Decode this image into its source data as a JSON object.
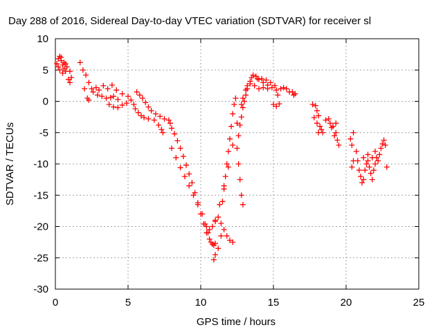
{
  "chart_data": {
    "type": "scatter",
    "title": "Day 288 of 2016, Sidereal Day-to-day VTEC variation (SDTVAR) for receiver sl",
    "xlabel": "GPS time / hours",
    "ylabel": "SDTVAR / TECUs",
    "xlim": [
      0,
      25
    ],
    "ylim": [
      -30,
      10
    ],
    "xticks": [
      0,
      5,
      10,
      15,
      20,
      25
    ],
    "yticks": [
      -30,
      -25,
      -20,
      -15,
      -10,
      -5,
      0,
      5,
      10
    ],
    "grid": true,
    "marker": "+",
    "color": "#ff0000",
    "series": [
      {
        "name": "SDTVAR",
        "points": [
          [
            0.1,
            6.0
          ],
          [
            0.2,
            6.8
          ],
          [
            0.3,
            7.2
          ],
          [
            0.4,
            6.5
          ],
          [
            0.5,
            5.8
          ],
          [
            0.6,
            5.2
          ],
          [
            0.7,
            4.8
          ],
          [
            0.8,
            5.5
          ],
          [
            0.3,
            5.0
          ],
          [
            0.5,
            4.5
          ],
          [
            0.2,
            5.5
          ],
          [
            0.6,
            6.2
          ],
          [
            0.4,
            7.0
          ],
          [
            0.7,
            6.0
          ],
          [
            0.9,
            3.5
          ],
          [
            1.0,
            3.0
          ],
          [
            1.1,
            3.8
          ],
          [
            1.0,
            4.8
          ],
          [
            1.7,
            6.2
          ],
          [
            1.9,
            5.0
          ],
          [
            2.1,
            4.2
          ],
          [
            2.3,
            3.0
          ],
          [
            2.0,
            2.0
          ],
          [
            2.2,
            0.5
          ],
          [
            2.3,
            0.2
          ],
          [
            2.5,
            2.0
          ],
          [
            2.8,
            2.2
          ],
          [
            3.0,
            1.8
          ],
          [
            3.3,
            2.5
          ],
          [
            3.6,
            2.0
          ],
          [
            3.9,
            2.6
          ],
          [
            4.2,
            1.8
          ],
          [
            4.6,
            1.2
          ],
          [
            2.6,
            1.5
          ],
          [
            2.9,
            1.0
          ],
          [
            3.2,
            0.8
          ],
          [
            3.5,
            0.5
          ],
          [
            3.8,
            0.6
          ],
          [
            4.0,
            0.8
          ],
          [
            4.3,
            0.3
          ],
          [
            3.7,
            -0.5
          ],
          [
            4.0,
            -0.9
          ],
          [
            4.3,
            -1.0
          ],
          [
            4.6,
            -0.6
          ],
          [
            4.9,
            -0.3
          ],
          [
            5.0,
            0.8
          ],
          [
            5.2,
            0.2
          ],
          [
            5.4,
            -0.5
          ],
          [
            5.5,
            -1.2
          ],
          [
            5.7,
            -1.8
          ],
          [
            5.9,
            -2.3
          ],
          [
            6.1,
            -2.6
          ],
          [
            6.4,
            -2.8
          ],
          [
            6.8,
            -3.0
          ],
          [
            5.6,
            1.5
          ],
          [
            5.8,
            1.0
          ],
          [
            6.0,
            0.5
          ],
          [
            6.2,
            -0.2
          ],
          [
            6.4,
            -0.9
          ],
          [
            6.6,
            -1.5
          ],
          [
            6.9,
            -2.0
          ],
          [
            7.2,
            -2.4
          ],
          [
            7.5,
            -2.8
          ],
          [
            7.1,
            -3.8
          ],
          [
            7.3,
            -4.5
          ],
          [
            7.4,
            -5.0
          ],
          [
            7.8,
            -3.0
          ],
          [
            7.9,
            -3.5
          ],
          [
            8.0,
            -4.3
          ],
          [
            8.2,
            -5.2
          ],
          [
            8.4,
            -6.3
          ],
          [
            8.6,
            -7.5
          ],
          [
            8.8,
            -8.8
          ],
          [
            9.0,
            -10.2
          ],
          [
            9.2,
            -11.6
          ],
          [
            9.4,
            -13.0
          ],
          [
            9.6,
            -14.6
          ],
          [
            9.8,
            -16.2
          ],
          [
            10.0,
            -18.0
          ],
          [
            10.2,
            -19.6
          ],
          [
            10.4,
            -21.0
          ],
          [
            10.6,
            -22.0
          ],
          [
            10.8,
            -22.8
          ],
          [
            11.0,
            -22.7
          ],
          [
            8.0,
            -7.5
          ],
          [
            8.3,
            -9.0
          ],
          [
            8.6,
            -10.6
          ],
          [
            8.9,
            -12.0
          ],
          [
            9.2,
            -13.5
          ],
          [
            9.5,
            -15.0
          ],
          [
            9.8,
            -16.5
          ],
          [
            10.1,
            -18.0
          ],
          [
            10.3,
            -19.6
          ],
          [
            10.5,
            -21.0
          ],
          [
            10.7,
            -22.5
          ],
          [
            10.9,
            -23.0
          ],
          [
            10.4,
            -20.0
          ],
          [
            10.6,
            -20.5
          ],
          [
            10.8,
            -20.0
          ],
          [
            11.0,
            -19.2
          ],
          [
            11.2,
            -18.5
          ],
          [
            11.4,
            -19.5
          ],
          [
            11.6,
            -20.5
          ],
          [
            11.8,
            -21.5
          ],
          [
            12.0,
            -22.2
          ],
          [
            12.2,
            -22.5
          ],
          [
            10.9,
            -25.3
          ],
          [
            11.0,
            -24.5
          ],
          [
            11.2,
            -23.5
          ],
          [
            11.4,
            -21.5
          ],
          [
            11.5,
            -16.0
          ],
          [
            11.6,
            -14.0
          ],
          [
            11.7,
            -12.0
          ],
          [
            11.8,
            -10.0
          ],
          [
            11.9,
            -8.0
          ],
          [
            12.0,
            -6.0
          ],
          [
            12.1,
            -4.0
          ],
          [
            12.2,
            -2.0
          ],
          [
            12.3,
            -0.5
          ],
          [
            12.4,
            0.5
          ],
          [
            12.6,
            -10.0
          ],
          [
            12.7,
            -12.5
          ],
          [
            12.8,
            -15.0
          ],
          [
            12.9,
            -16.5
          ],
          [
            12.5,
            -7.5
          ],
          [
            12.6,
            -5.5
          ],
          [
            12.7,
            -3.8
          ],
          [
            12.8,
            -2.5
          ],
          [
            12.9,
            -1.0
          ],
          [
            13.0,
            0.0
          ],
          [
            13.1,
            1.0
          ],
          [
            13.2,
            2.0
          ],
          [
            13.4,
            3.2
          ],
          [
            13.6,
            4.2
          ],
          [
            13.8,
            4.0
          ],
          [
            14.0,
            3.5
          ],
          [
            14.3,
            3.0
          ],
          [
            14.6,
            2.6
          ],
          [
            14.9,
            2.2
          ],
          [
            11.0,
            -19.0
          ],
          [
            11.3,
            -16.5
          ],
          [
            11.6,
            -13.5
          ],
          [
            11.9,
            -10.5
          ],
          [
            12.2,
            -7.0
          ],
          [
            12.5,
            -3.5
          ],
          [
            12.8,
            -0.5
          ],
          [
            13.1,
            1.8
          ],
          [
            13.4,
            2.8
          ],
          [
            13.7,
            2.5
          ],
          [
            14.0,
            2.0
          ],
          [
            14.3,
            2.2
          ],
          [
            14.6,
            2.0
          ],
          [
            12.9,
            0.5
          ],
          [
            13.2,
            2.5
          ],
          [
            13.5,
            3.8
          ],
          [
            13.9,
            3.6
          ],
          [
            14.2,
            3.6
          ],
          [
            14.5,
            3.4
          ],
          [
            14.8,
            3.0
          ],
          [
            15.1,
            2.5
          ],
          [
            15.2,
            1.8
          ],
          [
            15.3,
            1.0
          ],
          [
            15.5,
            2.0
          ],
          [
            15.7,
            2.2
          ],
          [
            15.9,
            2.0
          ],
          [
            16.1,
            1.5
          ],
          [
            15.0,
            -0.5
          ],
          [
            15.2,
            -0.8
          ],
          [
            15.4,
            -0.4
          ],
          [
            16.3,
            1.5
          ],
          [
            16.4,
            1.0
          ],
          [
            16.5,
            1.2
          ],
          [
            17.7,
            -0.5
          ],
          [
            17.9,
            -0.7
          ],
          [
            18.0,
            -1.5
          ],
          [
            18.1,
            -2.3
          ],
          [
            17.8,
            -2.6
          ],
          [
            18.0,
            -3.5
          ],
          [
            18.2,
            -4.0
          ],
          [
            18.3,
            -4.5
          ],
          [
            18.1,
            -5.0
          ],
          [
            18.4,
            -5.0
          ],
          [
            18.6,
            -3.0
          ],
          [
            18.8,
            -2.8
          ],
          [
            18.9,
            -3.5
          ],
          [
            19.0,
            -4.2
          ],
          [
            19.1,
            -4.0
          ],
          [
            19.3,
            -3.5
          ],
          [
            19.3,
            -5.0
          ],
          [
            19.4,
            -6.2
          ],
          [
            19.5,
            -7.0
          ],
          [
            19.2,
            -5.5
          ],
          [
            20.3,
            -6.0
          ],
          [
            20.4,
            -7.0
          ],
          [
            20.5,
            -5.0
          ],
          [
            20.7,
            -8.0
          ],
          [
            20.8,
            -9.5
          ],
          [
            20.5,
            -9.5
          ],
          [
            20.4,
            -10.5
          ],
          [
            20.9,
            -11.0
          ],
          [
            21.0,
            -12.0
          ],
          [
            21.1,
            -13.0
          ],
          [
            21.2,
            -12.5
          ],
          [
            21.3,
            -11.0
          ],
          [
            21.4,
            -10.0
          ],
          [
            21.5,
            -9.5
          ],
          [
            21.6,
            -10.5
          ],
          [
            21.7,
            -11.5
          ],
          [
            21.8,
            -12.5
          ],
          [
            21.9,
            -11.0
          ],
          [
            22.0,
            -10.0
          ],
          [
            22.1,
            -9.0
          ],
          [
            22.2,
            -9.5
          ],
          [
            22.3,
            -8.5
          ],
          [
            22.4,
            -7.5
          ],
          [
            22.5,
            -6.8
          ],
          [
            22.6,
            -6.2
          ],
          [
            22.7,
            -7.0
          ],
          [
            22.8,
            -10.5
          ],
          [
            21.2,
            -9.0
          ],
          [
            21.5,
            -8.5
          ],
          [
            21.8,
            -9.0
          ],
          [
            22.0,
            -8.0
          ]
        ]
      }
    ]
  }
}
